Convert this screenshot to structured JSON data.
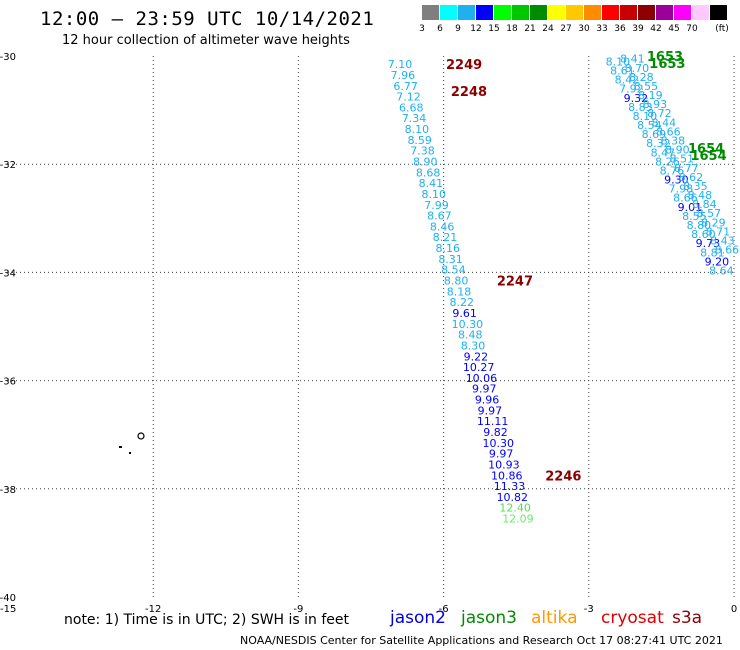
{
  "header": {
    "title": "12:00 – 23:59 UTC 10/14/2021",
    "subtitle": "12 hour collection of altimeter wave heights"
  },
  "colorbar": {
    "unit": "(ft)",
    "bins": [
      {
        "label": "3",
        "color": "#7f7f7f"
      },
      {
        "label": "6",
        "color": "#00ffff"
      },
      {
        "label": "9",
        "color": "#1fb0f0"
      },
      {
        "label": "12",
        "color": "#0000ff"
      },
      {
        "label": "15",
        "color": "#00ff00"
      },
      {
        "label": "18",
        "color": "#00c800"
      },
      {
        "label": "21",
        "color": "#008c00"
      },
      {
        "label": "24",
        "color": "#ffff00"
      },
      {
        "label": "27",
        "color": "#ffc800"
      },
      {
        "label": "30",
        "color": "#ff8c00"
      },
      {
        "label": "33",
        "color": "#ff0000"
      },
      {
        "label": "36",
        "color": "#c80000"
      },
      {
        "label": "39",
        "color": "#8b0000"
      },
      {
        "label": "42",
        "color": "#9c009c"
      },
      {
        "label": "45",
        "color": "#ff00ff"
      },
      {
        "label": "70",
        "color": "#ffc8ff"
      },
      {
        "label": "",
        "color": "#000000"
      }
    ]
  },
  "axes": {
    "lon_min": -15,
    "lon_max": 0,
    "lat_min": -40,
    "lat_max": -30,
    "x_ticks": [
      {
        "v": -15,
        "label": "-15"
      },
      {
        "v": -12,
        "label": "-12"
      },
      {
        "v": -9,
        "label": "-9"
      },
      {
        "v": -6,
        "label": "-6"
      },
      {
        "v": -3,
        "label": "-3"
      },
      {
        "v": 0,
        "label": "0"
      }
    ],
    "y_ticks": [
      {
        "v": -30,
        "label": "-30"
      },
      {
        "v": -32,
        "label": "-32"
      },
      {
        "v": -34,
        "label": "-34"
      },
      {
        "v": -36,
        "label": "-36"
      },
      {
        "v": -38,
        "label": "-38"
      },
      {
        "v": -40,
        "label": "-40"
      }
    ]
  },
  "tracks": [
    {
      "start_lon": -6.9,
      "start_lat": -30.15,
      "dlon": 0.058,
      "dlat": -0.2,
      "values": [
        {
          "v": "7.10",
          "c": "#1fb0f0"
        },
        {
          "v": "7.96",
          "c": "#1fb0f0"
        },
        {
          "v": "6.77",
          "c": "#1fb0f0"
        },
        {
          "v": "7.12",
          "c": "#1fb0f0"
        },
        {
          "v": "6.68",
          "c": "#1fb0f0"
        },
        {
          "v": "7.34",
          "c": "#1fb0f0"
        },
        {
          "v": "8.10",
          "c": "#1fb0f0"
        },
        {
          "v": "8.59",
          "c": "#1fb0f0"
        },
        {
          "v": "7.38",
          "c": "#1fb0f0"
        },
        {
          "v": "8.90",
          "c": "#1fb0f0"
        },
        {
          "v": "8.68",
          "c": "#1fb0f0"
        },
        {
          "v": "8.41",
          "c": "#1fb0f0"
        },
        {
          "v": "8.10",
          "c": "#1fb0f0"
        },
        {
          "v": "7.99",
          "c": "#1fb0f0"
        },
        {
          "v": "8.67",
          "c": "#1fb0f0"
        },
        {
          "v": "8.46",
          "c": "#1fb0f0"
        },
        {
          "v": "8.21",
          "c": "#1fb0f0"
        },
        {
          "v": "8.16",
          "c": "#1fb0f0"
        },
        {
          "v": "8.31",
          "c": "#1fb0f0"
        },
        {
          "v": "8.54",
          "c": "#1fb0f0"
        },
        {
          "v": "8.80",
          "c": "#1fb0f0"
        },
        {
          "v": "8.18",
          "c": "#1fb0f0"
        },
        {
          "v": "8.22",
          "c": "#1fb0f0"
        },
        {
          "v": "9.61",
          "c": "#0000ff"
        },
        {
          "v": "10.30",
          "c": "#1fb0f0"
        },
        {
          "v": "8.48",
          "c": "#1fb0f0"
        },
        {
          "v": "8.30",
          "c": "#1fb0f0"
        },
        {
          "v": "9.22",
          "c": "#0000ff"
        },
        {
          "v": "10.27",
          "c": "#0000ff"
        },
        {
          "v": "10.06",
          "c": "#0000ff"
        },
        {
          "v": "9.97",
          "c": "#0000ff"
        },
        {
          "v": "9.96",
          "c": "#0000ff"
        },
        {
          "v": "9.97",
          "c": "#0000ff"
        },
        {
          "v": "11.11",
          "c": "#0000ff"
        },
        {
          "v": "9.82",
          "c": "#0000ff"
        },
        {
          "v": "10.30",
          "c": "#0000ff"
        },
        {
          "v": "9.97",
          "c": "#0000ff"
        },
        {
          "v": "10.93",
          "c": "#0000ff"
        },
        {
          "v": "10.86",
          "c": "#0000ff"
        },
        {
          "v": "11.33",
          "c": "#0000ff"
        },
        {
          "v": "10.82",
          "c": "#0000ff"
        },
        {
          "v": "12.40",
          "c": "#55dd55"
        },
        {
          "v": "12.09",
          "c": "#66ee66"
        }
      ]
    },
    {
      "start_lon": -2.4,
      "start_lat": -30.1,
      "dlon": 0.093,
      "dlat": -0.168,
      "values": [
        {
          "v": "8.10",
          "c": "#1fb0f0"
        },
        {
          "v": "8.61",
          "c": "#1fb0f0"
        },
        {
          "v": "8.42",
          "c": "#1fb0f0"
        },
        {
          "v": "7.92",
          "c": "#1fb0f0"
        },
        {
          "v": "9.32",
          "c": "#0000ff"
        },
        {
          "v": "8.83",
          "c": "#1fb0f0"
        },
        {
          "v": "8.10",
          "c": "#1fb0f0"
        },
        {
          "v": "8.54",
          "c": "#1fb0f0"
        },
        {
          "v": "8.69",
          "c": "#1fb0f0"
        },
        {
          "v": "8.32",
          "c": "#1fb0f0"
        },
        {
          "v": "8.47",
          "c": "#1fb0f0"
        },
        {
          "v": "8.26",
          "c": "#1fb0f0"
        },
        {
          "v": "8.76",
          "c": "#1fb0f0"
        },
        {
          "v": "9.30",
          "c": "#0000ff"
        },
        {
          "v": "7.98",
          "c": "#1fb0f0"
        },
        {
          "v": "8.66",
          "c": "#1fb0f0"
        },
        {
          "v": "9.01",
          "c": "#0000ff"
        },
        {
          "v": "8.55",
          "c": "#1fb0f0"
        },
        {
          "v": "8.80",
          "c": "#1fb0f0"
        },
        {
          "v": "8.60",
          "c": "#1fb0f0"
        },
        {
          "v": "9.73",
          "c": "#0000ff"
        },
        {
          "v": "8.81",
          "c": "#1fb0f0"
        },
        {
          "v": "9.20",
          "c": "#0000ff"
        },
        {
          "v": "8.64",
          "c": "#1fb0f0"
        }
      ]
    },
    {
      "start_lon": -2.1,
      "start_lat": -30.05,
      "dlon": 0.093,
      "dlat": -0.168,
      "values": [
        {
          "v": "8.41",
          "c": "#1fb0f0"
        },
        {
          "v": "8.70",
          "c": "#1fb0f0"
        },
        {
          "v": "8.28",
          "c": "#1fb0f0"
        },
        {
          "v": "8.55",
          "c": "#1fb0f0"
        },
        {
          "v": "8.19",
          "c": "#1fb0f0"
        },
        {
          "v": "8.93",
          "c": "#1fb0f0"
        },
        {
          "v": "8.72",
          "c": "#1fb0f0"
        },
        {
          "v": "8.44",
          "c": "#1fb0f0"
        },
        {
          "v": "8.66",
          "c": "#1fb0f0"
        },
        {
          "v": "8.38",
          "c": "#1fb0f0"
        },
        {
          "v": "8.90",
          "c": "#1fb0f0"
        },
        {
          "v": "8.51",
          "c": "#1fb0f0"
        },
        {
          "v": "8.77",
          "c": "#1fb0f0"
        },
        {
          "v": "8.62",
          "c": "#1fb0f0"
        },
        {
          "v": "8.35",
          "c": "#1fb0f0"
        },
        {
          "v": "8.48",
          "c": "#1fb0f0"
        },
        {
          "v": "8.84",
          "c": "#1fb0f0"
        },
        {
          "v": "8.57",
          "c": "#1fb0f0"
        },
        {
          "v": "8.29",
          "c": "#1fb0f0"
        },
        {
          "v": "8.71",
          "c": "#1fb0f0"
        },
        {
          "v": "8.43",
          "c": "#1fb0f0"
        },
        {
          "v": "8.66",
          "c": "#1fb0f0"
        }
      ]
    }
  ],
  "time_labels": [
    {
      "text": "2249",
      "lon": -5.95,
      "lat": -30.15,
      "color": "#8b0000"
    },
    {
      "text": "2248",
      "lon": -5.85,
      "lat": -30.65,
      "color": "#8b0000"
    },
    {
      "text": "2247",
      "lon": -4.9,
      "lat": -34.15,
      "color": "#8b0000"
    },
    {
      "text": "2246",
      "lon": -3.9,
      "lat": -37.75,
      "color": "#8b0000"
    },
    {
      "text": "1653",
      "lon": -1.8,
      "lat": -30.0,
      "color": "#008c00"
    },
    {
      "text": "1653",
      "lon": -1.75,
      "lat": -30.13,
      "color": "#008c00"
    },
    {
      "text": "1654",
      "lon": -0.95,
      "lat": -31.7,
      "color": "#008c00"
    },
    {
      "text": "1654",
      "lon": -0.9,
      "lat": -31.83,
      "color": "#008c00"
    }
  ],
  "footer_note": "note:  1) Time is in UTC; 2) SWH is in feet",
  "satellites": [
    {
      "name": "jason2",
      "color": "#0000dd"
    },
    {
      "name": "jason3",
      "color": "#008c00"
    },
    {
      "name": "altika",
      "color": "#ff9900"
    },
    {
      "name": "cryosat",
      "color": "#dd0000"
    },
    {
      "name": "s3a",
      "color": "#8b0000"
    }
  ],
  "credit": "NOAA/NESDIS Center for Satellite Applications and Research    Oct 17 08:27:41 UTC 2021"
}
